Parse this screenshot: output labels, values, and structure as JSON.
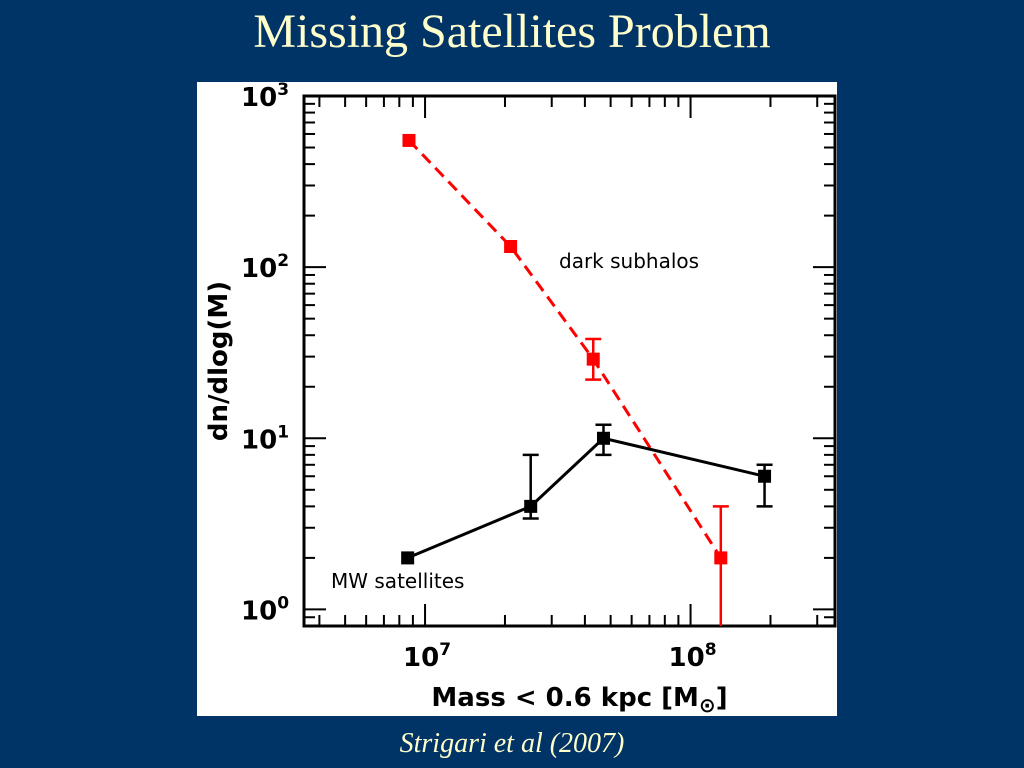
{
  "slide": {
    "title": "Missing Satellites Problem",
    "citation": "Strigari et al (2007)"
  },
  "chart_data": {
    "type": "line",
    "xlabel": "Mass < 0.6 kpc [M",
    "xlabel_symbol": "⊙",
    "xlabel_close": "]",
    "ylabel": "dn/dlog(M)",
    "x_scale": "log",
    "y_scale": "log",
    "xlim": [
      3500000,
      350000000
    ],
    "ylim": [
      0.8,
      1000
    ],
    "x_ticks": [
      {
        "value": 10000000,
        "base": "10",
        "exp": "7"
      },
      {
        "value": 100000000,
        "base": "10",
        "exp": "8"
      }
    ],
    "y_ticks": [
      {
        "value": 1,
        "base": "10",
        "exp": "0"
      },
      {
        "value": 10,
        "base": "10",
        "exp": "1"
      },
      {
        "value": 100,
        "base": "10",
        "exp": "2"
      },
      {
        "value": 1000,
        "base": "10",
        "exp": "3"
      }
    ],
    "series": [
      {
        "name": "dark subhalos",
        "color": "#ff0000",
        "dashed": true,
        "points": [
          {
            "x": 8700000,
            "y": 550
          },
          {
            "x": 21000000,
            "y": 132
          },
          {
            "x": 43000000,
            "y": 29,
            "err_low": 22,
            "err_high": 38
          },
          {
            "x": 130000000,
            "y": 2.0,
            "err_low": 0.8,
            "err_high": 4.0
          }
        ]
      },
      {
        "name": "MW satellites",
        "color": "#000000",
        "dashed": false,
        "points": [
          {
            "x": 8600000,
            "y": 2.0
          },
          {
            "x": 25000000,
            "y": 4.0,
            "err_low": 3.4,
            "err_high": 8.0
          },
          {
            "x": 47000000,
            "y": 10,
            "err_low": 8,
            "err_high": 12
          },
          {
            "x": 190000000,
            "y": 6.0,
            "err_low": 4.0,
            "err_high": 7.0
          }
        ]
      }
    ],
    "annotations": [
      {
        "text": "dark subhalos",
        "color": "#ff0000"
      },
      {
        "text": "MW satellites",
        "color": "#000000"
      }
    ]
  }
}
